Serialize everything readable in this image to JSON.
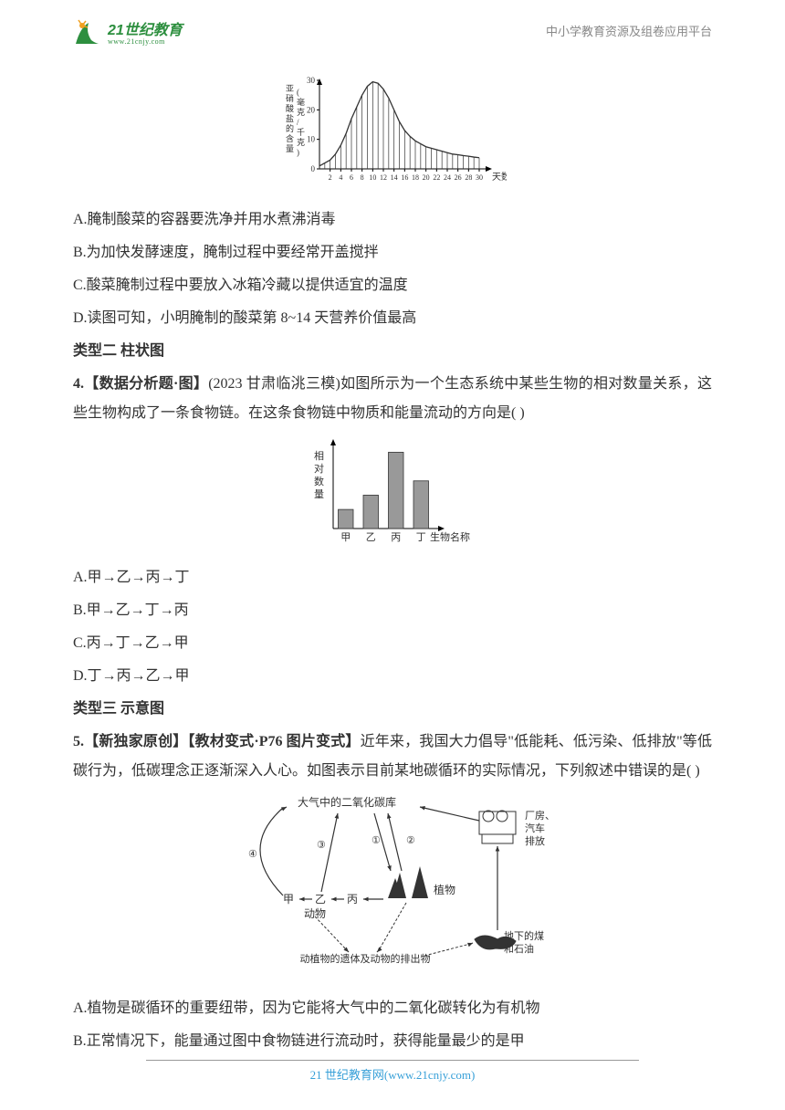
{
  "header": {
    "logo_cn": "21世纪教育",
    "logo_url": "www.21cnjy.com",
    "right_text": "中小学教育资源及组卷应用平台"
  },
  "chart1": {
    "type": "line-area",
    "x_label": "天数",
    "y_label": "亚硝酸盐的含量(毫克/千克)",
    "x_ticks": [
      2,
      4,
      6,
      8,
      10,
      12,
      14,
      16,
      18,
      20,
      22,
      24,
      26,
      28,
      30
    ],
    "y_ticks": [
      0,
      10,
      20,
      30
    ],
    "xlim": [
      0,
      30
    ],
    "ylim": [
      0,
      30
    ],
    "points": [
      [
        0,
        1
      ],
      [
        1,
        2
      ],
      [
        2,
        3
      ],
      [
        3,
        5
      ],
      [
        4,
        8
      ],
      [
        5,
        12
      ],
      [
        6,
        17
      ],
      [
        7,
        21
      ],
      [
        8,
        25
      ],
      [
        9,
        28
      ],
      [
        10,
        29.5
      ],
      [
        11,
        29
      ],
      [
        12,
        27
      ],
      [
        13,
        24
      ],
      [
        14,
        20
      ],
      [
        15,
        16
      ],
      [
        16,
        13
      ],
      [
        17,
        11
      ],
      [
        18,
        9.5
      ],
      [
        19,
        8.5
      ],
      [
        20,
        7.5
      ],
      [
        21,
        7
      ],
      [
        22,
        6.5
      ],
      [
        23,
        6
      ],
      [
        24,
        5.5
      ],
      [
        25,
        5
      ],
      [
        26,
        4.8
      ],
      [
        27,
        4.5
      ],
      [
        28,
        4.3
      ],
      [
        29,
        4
      ],
      [
        30,
        3.8
      ]
    ],
    "line_color": "#333333",
    "hatch_color": "#333333",
    "background": "#ffffff",
    "axis_color": "#000000"
  },
  "q3_options": {
    "A": "A.腌制酸菜的容器要洗净并用水煮沸消毒",
    "B": "B.为加快发酵速度，腌制过程中要经常开盖搅拌",
    "C": "C.酸菜腌制过程中要放入冰箱冷藏以提供适宜的温度",
    "D": "D.读图可知，小明腌制的酸菜第 8~14 天营养价值最高"
  },
  "section2": "类型二  柱状图",
  "q4": {
    "prefix": "4.【数据分析题·图】",
    "source": "(2023 甘肃临洮三模)",
    "stem": "如图所示为一个生态系统中某些生物的相对数量关系，这些生物构成了一条食物链。在这条食物链中物质和能量流动的方向是(      )"
  },
  "chart2": {
    "type": "bar",
    "y_label": "相对数量",
    "x_label": "生物名称",
    "categories": [
      "甲",
      "乙",
      "丙",
      "丁"
    ],
    "values": [
      20,
      35,
      80,
      50
    ],
    "ylim": [
      0,
      90
    ],
    "bar_color": "#999999",
    "bar_border": "#333333",
    "axis_color": "#000000",
    "background": "#ffffff",
    "bar_width": 0.6
  },
  "q4_options": {
    "A": "A.甲→乙→丙→丁",
    "B": "B.甲→乙→丁→丙",
    "C": "C.丙→丁→乙→甲",
    "D": "D.丁→丙→乙→甲"
  },
  "section3": "类型三  示意图",
  "q5": {
    "prefix": "5.【新独家原创】【教材变式·P76 图片变式】",
    "stem1": "近年来，我国大力倡导\"低能耗、低污染、低排放\"等低碳行为，低碳理念正逐渐深入人心。如图表示目前某地碳循环的实际情况，下列叙述中错误的是(      )"
  },
  "diagram": {
    "title_top": "大气中的二氧化碳库",
    "top_right": "厂房、汽车排放",
    "plant": "植物",
    "animals": "动物",
    "chain": [
      "甲",
      "乙",
      "丙"
    ],
    "bottom": "动植物的遗体及动物的排出物",
    "coal": "地下的煤和石油",
    "arrows": [
      "①",
      "②",
      "③",
      "④"
    ],
    "line_color": "#333333"
  },
  "q5_options": {
    "A": "A.植物是碳循环的重要纽带，因为它能将大气中的二氧化碳转化为有机物",
    "B": "B.正常情况下，能量通过图中食物链进行流动时，获得能量最少的是甲"
  },
  "footer": {
    "text": "21 世纪教育网(www.21cnjy.com)"
  }
}
